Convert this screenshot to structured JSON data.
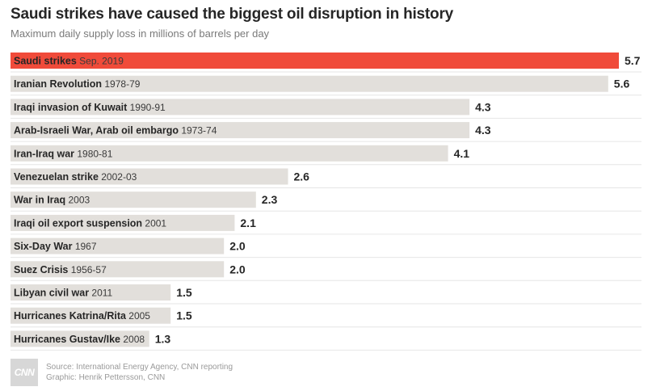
{
  "header": {
    "title": "Saudi strikes have caused the biggest oil disruption in history",
    "subtitle": "Maximum daily supply loss in millions of barrels per day"
  },
  "colors": {
    "highlight": "#f04b3a",
    "bar": "#e2dfdb",
    "separator": "#e6e6e6"
  },
  "chart_data": {
    "type": "bar",
    "orientation": "horizontal",
    "categories": [
      {
        "name": "Saudi strikes",
        "period": "Sep. 2019"
      },
      {
        "name": "Iranian Revolution",
        "period": "1978-79"
      },
      {
        "name": "Iraqi invasion of Kuwait",
        "period": "1990-91"
      },
      {
        "name": "Arab-Israeli War, Arab oil embargo",
        "period": "1973-74"
      },
      {
        "name": "Iran-Iraq war",
        "period": "1980-81"
      },
      {
        "name": "Venezuelan strike",
        "period": "2002-03"
      },
      {
        "name": "War in Iraq",
        "period": "2003"
      },
      {
        "name": "Iraqi oil export suspension",
        "period": "2001"
      },
      {
        "name": "Six-Day War",
        "period": "1967"
      },
      {
        "name": "Suez Crisis",
        "period": "1956-57"
      },
      {
        "name": "Libyan civil war",
        "period": "2011"
      },
      {
        "name": "Hurricanes Katrina/Rita",
        "period": "2005"
      },
      {
        "name": "Hurricanes Gustav/Ike",
        "period": "2008"
      }
    ],
    "values": [
      5.7,
      5.6,
      4.3,
      4.3,
      4.1,
      2.6,
      2.3,
      2.1,
      2.0,
      2.0,
      1.5,
      1.5,
      1.3
    ],
    "value_labels": [
      "5.7",
      "5.6",
      "4.3",
      "4.3",
      "4.1",
      "2.6",
      "2.3",
      "2.1",
      "2.0",
      "2.0",
      "1.5",
      "1.5",
      "1.3"
    ],
    "highlight_index": 0,
    "xlim": [
      0,
      5.7
    ],
    "grid": false,
    "legend": "none"
  },
  "footer": {
    "logo_text": "CNN",
    "source": "Source: International Energy Agency, CNN reporting",
    "graphic": "Graphic: Henrik Pettersson, CNN"
  }
}
